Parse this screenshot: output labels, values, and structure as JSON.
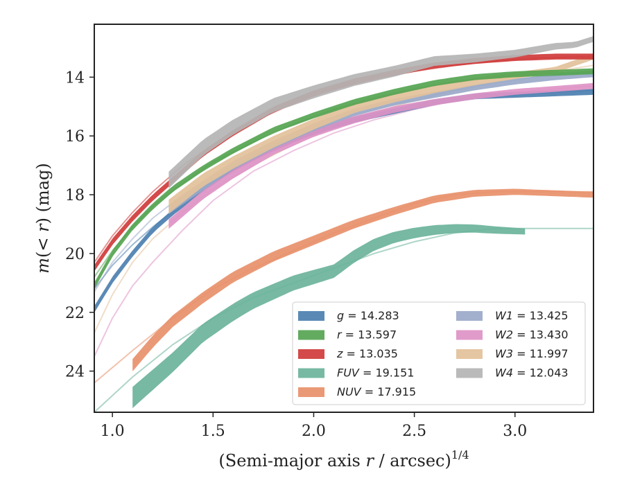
{
  "chart_data": {
    "type": "line",
    "title": "",
    "xlabel": "(Semi-major axis r / arcsec)",
    "xlabel_parts": {
      "pre": "(Semi-major axis ",
      "var": "r",
      "post": " / arcsec)",
      "exponent": "1/4"
    },
    "ylabel": "m(< r) (mag)",
    "ylabel_parts": {
      "pre": "m(",
      "mid": "< r",
      "post": ") (mag)"
    },
    "xlim": [
      0.91,
      3.39
    ],
    "ylim": [
      25.4,
      12.2
    ],
    "y_inverted": true,
    "grid": false,
    "legend_position": "lower-right",
    "xticks": [
      1.0,
      1.5,
      2.0,
      2.5,
      3.0
    ],
    "xtick_labels": [
      "1.0",
      "1.5",
      "2.0",
      "2.5",
      "3.0"
    ],
    "yticks": [
      14,
      16,
      18,
      20,
      22,
      24
    ],
    "ytick_labels": [
      "14",
      "16",
      "18",
      "20",
      "22",
      "24"
    ],
    "series": [
      {
        "name": "g = 14.283",
        "band": "g",
        "value": "14.283",
        "color": "#4c7fb0",
        "data_x": [
          0.91,
          1.0,
          1.1,
          1.2,
          1.3,
          1.45,
          1.6,
          1.8,
          2.0,
          2.2,
          2.4,
          2.6,
          2.8,
          3.0,
          3.2,
          3.39
        ],
        "data_y": [
          21.9,
          20.9,
          20.0,
          19.2,
          18.6,
          17.8,
          17.1,
          16.4,
          15.85,
          15.45,
          15.15,
          14.85,
          14.65,
          14.6,
          14.55,
          14.5
        ],
        "band_start": 1.28,
        "band_width": 0.1,
        "model_x": [
          0.91,
          1.0,
          1.1,
          1.2,
          1.35,
          1.5,
          1.7,
          1.9,
          2.1,
          2.3,
          2.5,
          2.7,
          2.9,
          3.1,
          3.39
        ],
        "model_y": [
          21.2,
          20.4,
          19.7,
          19.1,
          18.3,
          17.6,
          16.8,
          16.2,
          15.7,
          15.35,
          15.05,
          14.8,
          14.65,
          14.55,
          14.45
        ]
      },
      {
        "name": "r = 13.597",
        "band": "r",
        "value": "13.597",
        "color": "#55a451",
        "data_x": [
          0.91,
          1.0,
          1.1,
          1.2,
          1.3,
          1.45,
          1.6,
          1.8,
          2.0,
          2.2,
          2.4,
          2.6,
          2.8,
          3.0,
          3.2,
          3.39
        ],
        "data_y": [
          21.1,
          20.0,
          19.1,
          18.4,
          17.8,
          17.1,
          16.5,
          15.8,
          15.3,
          14.85,
          14.5,
          14.2,
          14.0,
          13.9,
          13.85,
          13.8
        ],
        "band_start": 1.28,
        "band_width": 0.1,
        "model_x": [
          0.91,
          1.0,
          1.1,
          1.2,
          1.35,
          1.5,
          1.7,
          1.9,
          2.1,
          2.3,
          2.5,
          2.7,
          2.9,
          3.1,
          3.39
        ],
        "model_y": [
          20.8,
          19.9,
          19.1,
          18.4,
          17.6,
          16.9,
          16.2,
          15.6,
          15.1,
          14.7,
          14.4,
          14.15,
          14.0,
          13.9,
          13.8
        ]
      },
      {
        "name": "z = 13.035",
        "band": "z",
        "value": "13.035",
        "color": "#d03b3b",
        "data_x": [
          0.91,
          1.0,
          1.1,
          1.2,
          1.3,
          1.45,
          1.6,
          1.8,
          2.0,
          2.2,
          2.4,
          2.6,
          2.8,
          3.0,
          3.2,
          3.39
        ],
        "data_y": [
          20.5,
          19.6,
          18.8,
          18.1,
          17.5,
          16.6,
          15.9,
          15.1,
          14.55,
          14.15,
          13.85,
          13.6,
          13.45,
          13.35,
          13.3,
          13.3
        ],
        "band_start": 1.28,
        "band_width": 0.1,
        "model_x": [
          0.91,
          1.0,
          1.1,
          1.2,
          1.35,
          1.5,
          1.7,
          1.9,
          2.1,
          2.3,
          2.5,
          2.7,
          2.9,
          3.1,
          3.39
        ],
        "model_y": [
          20.3,
          19.4,
          18.6,
          17.9,
          17.0,
          16.3,
          15.5,
          14.9,
          14.4,
          14.05,
          13.8,
          13.6,
          13.45,
          13.35,
          13.3
        ]
      },
      {
        "name": "FUV = 19.151",
        "band": "FUV",
        "value": "19.151",
        "color": "#6bb39b",
        "data_x": [
          1.1,
          1.3,
          1.45,
          1.6,
          1.7,
          1.8,
          1.9,
          2.0,
          2.1,
          2.2,
          2.3,
          2.4,
          2.5,
          2.6,
          2.7,
          2.8,
          2.9,
          3.05
        ],
        "data_y": [
          24.9,
          23.7,
          22.7,
          22.0,
          21.6,
          21.3,
          21.0,
          20.8,
          20.6,
          20.1,
          19.7,
          19.45,
          19.3,
          19.2,
          19.15,
          19.15,
          19.2,
          19.25
        ],
        "band_start": 1.1,
        "band_width": 0.6,
        "model_x": [
          0.91,
          1.1,
          1.3,
          1.5,
          1.7,
          1.9,
          2.1,
          2.3,
          2.5,
          2.7,
          2.9,
          3.1,
          3.39
        ],
        "model_y": [
          25.4,
          24.2,
          23.1,
          22.2,
          21.5,
          21.0,
          20.5,
          20.0,
          19.6,
          19.3,
          19.15,
          19.15,
          19.15
        ]
      },
      {
        "name": "NUV = 17.915",
        "band": "NUV",
        "value": "17.915",
        "color": "#e8906a",
        "data_x": [
          1.1,
          1.2,
          1.3,
          1.45,
          1.6,
          1.8,
          2.0,
          2.2,
          2.4,
          2.6,
          2.8,
          3.0,
          3.2,
          3.39
        ],
        "data_y": [
          23.8,
          23.0,
          22.3,
          21.5,
          20.8,
          20.1,
          19.55,
          19.0,
          18.55,
          18.15,
          17.95,
          17.9,
          17.95,
          18.0
        ],
        "band_start": 1.1,
        "band_width": 0.3,
        "model_x": [
          0.91,
          1.1,
          1.3,
          1.5,
          1.7,
          1.9,
          2.1,
          2.3,
          2.5,
          2.7,
          2.9,
          3.1,
          3.39
        ],
        "model_y": [
          24.4,
          23.3,
          22.2,
          21.2,
          20.5,
          19.9,
          19.3,
          18.8,
          18.3,
          18.0,
          17.9,
          17.9,
          17.9
        ]
      },
      {
        "name": "W1 = 13.425",
        "band": "W1",
        "value": "13.425",
        "color": "#9aa9c9",
        "data_x": [
          1.28,
          1.45,
          1.6,
          1.8,
          2.0,
          2.2,
          2.4,
          2.6,
          2.8,
          3.0,
          3.2,
          3.39
        ],
        "data_y": [
          18.5,
          17.7,
          17.0,
          16.3,
          15.7,
          15.2,
          14.85,
          14.6,
          14.35,
          14.15,
          14.0,
          13.9
        ],
        "band_start": 1.28,
        "band_width": 0.2,
        "model_x": [
          0.91,
          1.0,
          1.1,
          1.2,
          1.35,
          1.5,
          1.7,
          1.9,
          2.1,
          2.3,
          2.5,
          2.7,
          2.9,
          3.1,
          3.39
        ],
        "model_y": [
          21.3,
          20.3,
          19.5,
          18.8,
          18.0,
          17.3,
          16.6,
          16.0,
          15.5,
          15.1,
          14.75,
          14.45,
          14.2,
          14.0,
          13.85
        ]
      },
      {
        "name": "W2 = 13.430",
        "band": "W2",
        "value": "13.430",
        "color": "#de93c6",
        "data_x": [
          1.28,
          1.45,
          1.6,
          1.8,
          2.0,
          2.2,
          2.4,
          2.6,
          2.8,
          3.0,
          3.2,
          3.39
        ],
        "data_y": [
          19.0,
          18.0,
          17.3,
          16.5,
          15.9,
          15.45,
          15.1,
          14.85,
          14.65,
          14.5,
          14.4,
          14.3
        ],
        "band_start": 1.28,
        "band_width": 0.2,
        "model_x": [
          0.91,
          1.0,
          1.1,
          1.2,
          1.35,
          1.5,
          1.7,
          1.9,
          2.1,
          2.3,
          2.5,
          2.7,
          2.9,
          3.1,
          3.39
        ],
        "model_y": [
          23.5,
          22.2,
          21.1,
          20.3,
          19.2,
          18.2,
          17.2,
          16.5,
          15.9,
          15.45,
          15.1,
          14.8,
          14.6,
          14.45,
          14.3
        ]
      },
      {
        "name": "W3 = 11.997",
        "band": "W3",
        "value": "11.997",
        "color": "#e3c19a",
        "data_x": [
          1.28,
          1.45,
          1.6,
          1.8,
          2.0,
          2.2,
          2.4,
          2.6,
          2.8,
          3.0,
          3.2,
          3.39
        ],
        "data_y": [
          18.4,
          17.5,
          16.9,
          16.2,
          15.6,
          15.05,
          14.7,
          14.4,
          14.15,
          13.95,
          13.75,
          13.3
        ],
        "band_start": 1.28,
        "band_width": 0.35,
        "model_x": [
          0.91,
          1.0,
          1.1,
          1.2,
          1.35,
          1.5,
          1.7,
          1.9,
          2.1,
          2.3,
          2.5,
          2.7,
          2.9,
          3.1,
          3.39
        ],
        "model_y": [
          22.7,
          21.4,
          20.3,
          19.5,
          18.6,
          17.8,
          17.0,
          16.3,
          15.7,
          15.2,
          14.8,
          14.45,
          14.15,
          13.9,
          13.6
        ]
      },
      {
        "name": "W4 = 12.043",
        "band": "W4",
        "value": "12.043",
        "color": "#b4b4b4",
        "data_x": [
          1.28,
          1.45,
          1.6,
          1.8,
          2.0,
          2.2,
          2.4,
          2.6,
          2.8,
          3.0,
          3.2,
          3.3,
          3.39
        ],
        "data_y": [
          17.5,
          16.4,
          15.7,
          14.95,
          14.5,
          14.1,
          13.8,
          13.45,
          13.35,
          13.2,
          12.95,
          12.9,
          12.7
        ],
        "band_start": 1.28,
        "band_width": 0.45,
        "model_x": [],
        "model_y": []
      }
    ]
  }
}
